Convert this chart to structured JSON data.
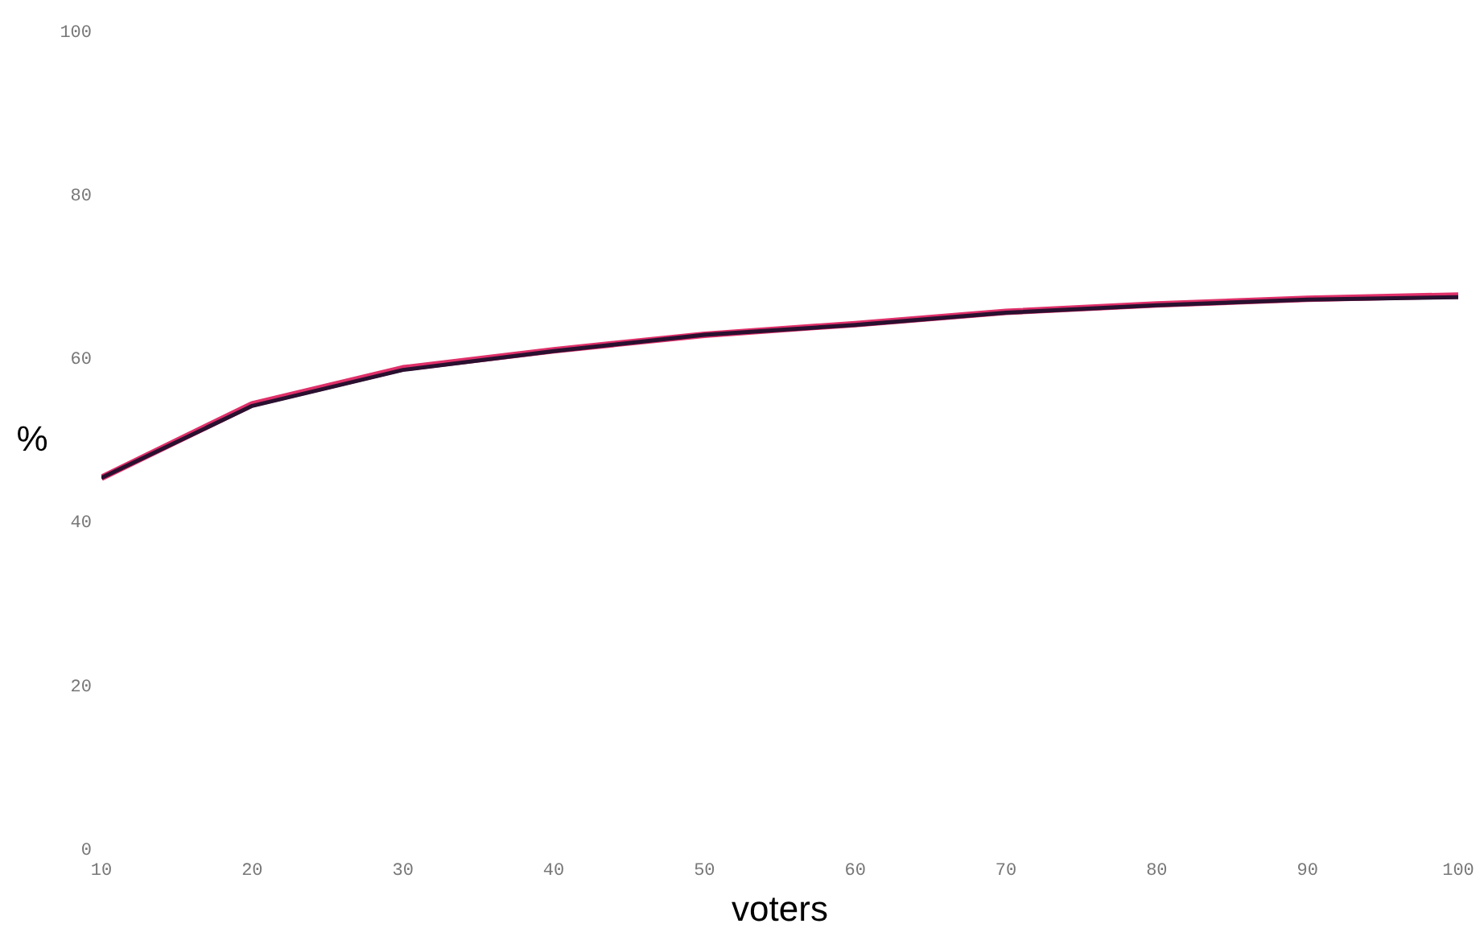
{
  "chart_data": {
    "type": "line",
    "xlabel": "voters",
    "ylabel": "%",
    "x": [
      10,
      20,
      30,
      40,
      50,
      60,
      70,
      80,
      90,
      100
    ],
    "series": [
      {
        "color": "#2a1030",
        "values": [
          45.5,
          54.3,
          58.7,
          61.0,
          63.0,
          64.2,
          65.7,
          66.6,
          67.3,
          67.6
        ]
      },
      {
        "color": "#e0306a",
        "values": [
          45.5,
          54.5,
          58.9,
          61.1,
          63.0,
          64.3,
          65.8,
          66.7,
          67.4,
          67.8
        ]
      }
    ],
    "xlim": [
      10,
      100
    ],
    "xticks": [
      10,
      20,
      30,
      40,
      50,
      60,
      70,
      80,
      90,
      100
    ],
    "ylim": [
      0,
      100
    ],
    "yticks": [
      0,
      20,
      40,
      60,
      80,
      100
    ],
    "grid": false,
    "legend": false,
    "marker": "none",
    "line_style": "solid"
  }
}
